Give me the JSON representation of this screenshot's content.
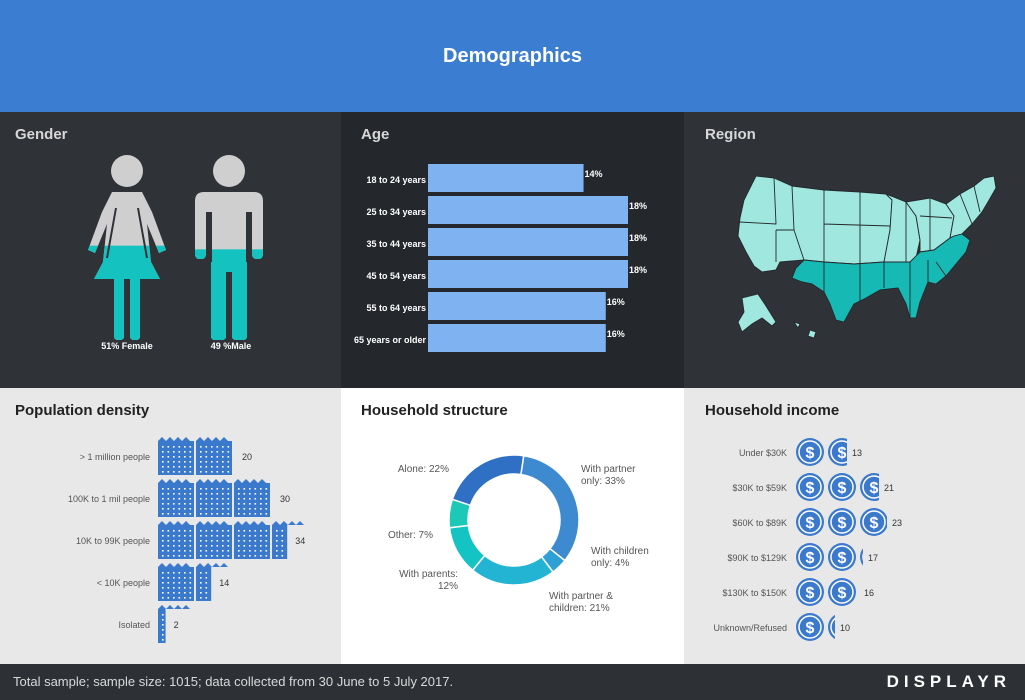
{
  "header": {
    "title": "Demographics"
  },
  "panels": {
    "gender": "Gender",
    "age": "Age",
    "region": "Region",
    "density": "Population density",
    "household": "Household structure",
    "income": "Household income"
  },
  "gender": {
    "female_label": "51% Female",
    "male_label": "49 %Male",
    "female_fill": 0.51,
    "male_fill": 0.49
  },
  "colors": {
    "header": "#3b7dd0",
    "bar": "#7fb2f0",
    "teal": "#14c3c0",
    "figure_gray": "#cfcfcf",
    "icon_blue": "#3b79cc",
    "map_dark": "#17b9b4",
    "map_light": "#9fe7df"
  },
  "chart_data": [
    {
      "type": "bar",
      "title": "Age",
      "categories": [
        "18 to 24 years",
        "25 to 34 years",
        "35 to 44 years",
        "45 to 54 years",
        "55 to 64 years",
        "65 years or older"
      ],
      "values": [
        14,
        18,
        18,
        18,
        16,
        16
      ],
      "labels": [
        "14%",
        "18%",
        "18%",
        "18%",
        "16%",
        "16%"
      ]
    },
    {
      "type": "bar",
      "title": "Population density",
      "categories": [
        "> 1 million people",
        "100K to 1 mil people",
        "10K to 99K people",
        "< 10K people",
        "Isolated"
      ],
      "values": [
        20,
        30,
        34,
        14,
        2
      ]
    },
    {
      "type": "pie",
      "title": "Household structure",
      "slices": [
        {
          "label": "With partner only:",
          "value": 33,
          "text": "33%",
          "color": "#3d8ad1"
        },
        {
          "label": "With children only:",
          "value": 4,
          "text": "4%",
          "color": "#2ea0d6"
        },
        {
          "label": "With partner & children:",
          "value": 21,
          "text": "21%",
          "color": "#22b4d2"
        },
        {
          "label": "With parents:",
          "value": 12,
          "text": "12%",
          "color": "#14c4c4"
        },
        {
          "label": "Other:",
          "value": 7,
          "text": "7%",
          "color": "#1cc9b8"
        },
        {
          "label": "Alone:",
          "value": 22,
          "text": "22%",
          "color": "#2f6fc4"
        }
      ]
    },
    {
      "type": "bar",
      "title": "Household income",
      "categories": [
        "Under $30K",
        "$30K to $59K",
        "$60K to $89K",
        "$90K to $129K",
        "$130K to $150K",
        "Unknown/Refused"
      ],
      "values": [
        13,
        21,
        23,
        17,
        16,
        10
      ]
    }
  ],
  "footer": {
    "text": "Total sample; sample size: 1015; data collected from 30 June to 5 July 2017.",
    "brand": "DISPLAYR"
  }
}
